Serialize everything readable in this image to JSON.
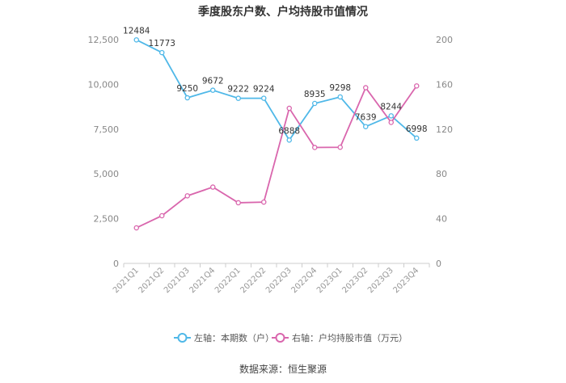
{
  "title": "季度股东户数、户均持股市值情况",
  "source": "数据来源：恒生聚源",
  "colors": {
    "left_series": "#4fb8e8",
    "right_series": "#d966ad",
    "axis": "#cccccc",
    "tick_text": "#888888"
  },
  "chart_data": {
    "type": "line",
    "title": "季度股东户数、户均持股市值情况",
    "categories": [
      "2021Q1",
      "2021Q2",
      "2021Q3",
      "2021Q4",
      "2022Q1",
      "2022Q2",
      "2022Q3",
      "2022Q4",
      "2023Q1",
      "2023Q2",
      "2023Q3",
      "2023Q4"
    ],
    "left_axis": {
      "ylim": [
        0,
        12500
      ],
      "ticks": [
        0,
        2500,
        5000,
        7500,
        10000,
        12500
      ],
      "tick_labels": [
        "0",
        "2,500",
        "5,000",
        "7,500",
        "10,000",
        "12,500"
      ]
    },
    "right_axis": {
      "ylim": [
        0,
        200
      ],
      "ticks": [
        0,
        40,
        80,
        120,
        160,
        200
      ],
      "tick_labels": [
        "0",
        "40",
        "80",
        "120",
        "160",
        "200"
      ]
    },
    "series": [
      {
        "name": "左轴：本期数（户）",
        "axis": "left",
        "color": "#4fb8e8",
        "values": [
          12484,
          11773,
          9250,
          9672,
          9222,
          9224,
          6888,
          8935,
          9298,
          7639,
          8244,
          6998
        ],
        "labels": [
          "12484",
          "11773",
          "9250",
          "9672",
          "9222",
          "9224",
          "6888",
          "8935",
          "9298",
          "7639",
          "8244",
          "6998"
        ]
      },
      {
        "name": "右轴：户均持股市值（万元）",
        "axis": "right",
        "color": "#d966ad",
        "values": [
          31.8,
          42.6,
          60.4,
          68.2,
          54.2,
          54.8,
          138.6,
          103.6,
          103.8,
          157.0,
          126.0,
          158.6
        ]
      }
    ],
    "grid": false,
    "legend_position": "bottom"
  }
}
